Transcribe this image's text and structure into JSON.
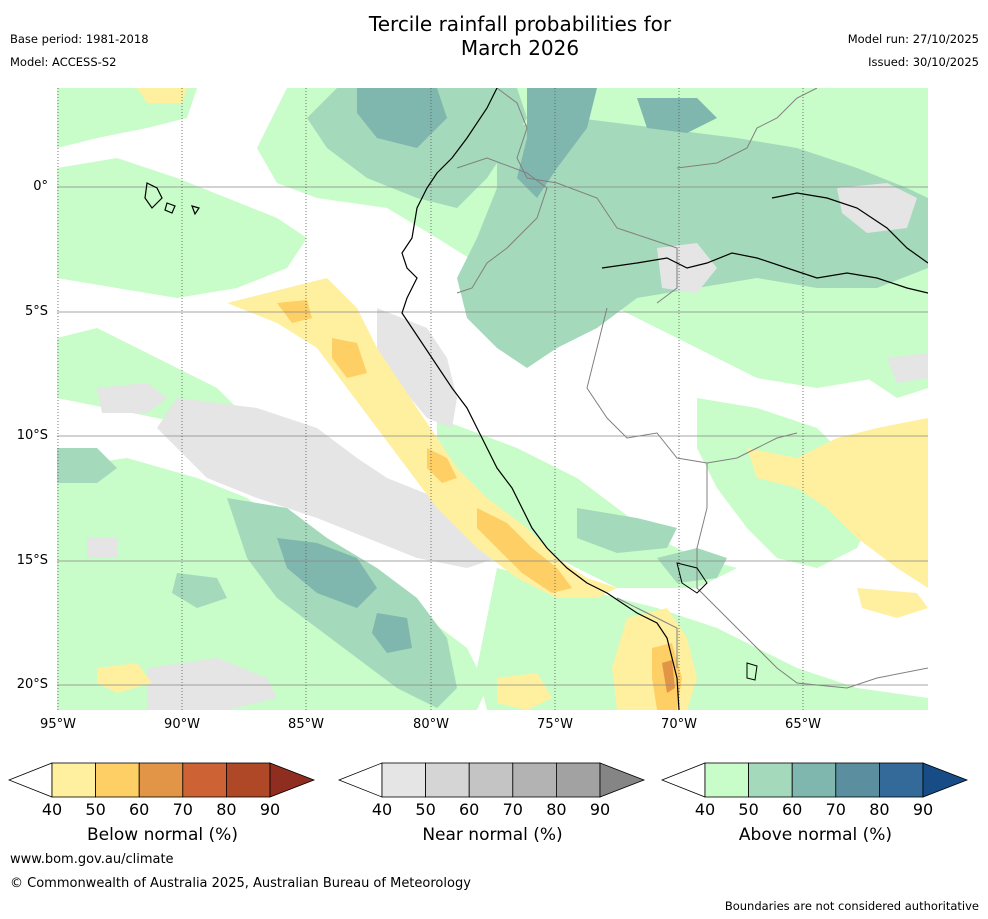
{
  "title": {
    "line1": "Tercile rainfall probabilities for",
    "line2": "March 2026"
  },
  "meta": {
    "base_period": "Base period: 1981-2018",
    "model": "Model: ACCESS-S2",
    "model_run": "Model run: 27/10/2025",
    "issued": "Issued: 30/10/2025"
  },
  "map": {
    "lat_labels": [
      "0°",
      "5°S",
      "10°S",
      "15°S",
      "20°S"
    ],
    "lon_labels": [
      "95°W",
      "90°W",
      "85°W",
      "80°W",
      "75°W",
      "70°W",
      "65°W"
    ],
    "lon_range": [
      -95,
      -60
    ],
    "lat_range": [
      -21,
      4
    ],
    "colors": {
      "ocean_bg": "#ffffff",
      "grid": "#888888",
      "coast": "#000000",
      "border": "#808080"
    }
  },
  "colorbars": [
    {
      "label": "Below normal (%)",
      "ticks": [
        "40",
        "50",
        "60",
        "70",
        "80",
        "90"
      ],
      "colors": [
        "#ffffff",
        "#fff0a0",
        "#fecf64",
        "#e29547",
        "#cd6334",
        "#ae4827",
        "#8f2d20"
      ]
    },
    {
      "label": "Near normal (%)",
      "ticks": [
        "40",
        "50",
        "60",
        "70",
        "80",
        "90"
      ],
      "colors": [
        "#ffffff",
        "#e5e5e5",
        "#d5d5d5",
        "#c4c4c4",
        "#b3b3b3",
        "#a2a2a2",
        "#858585"
      ]
    },
    {
      "label": "Above normal (%)",
      "ticks": [
        "40",
        "50",
        "60",
        "70",
        "80",
        "90"
      ],
      "colors": [
        "#ffffff",
        "#c8fcc8",
        "#a4d9bb",
        "#7fb6ad",
        "#5b8fa0",
        "#346a99",
        "#174c86"
      ]
    }
  ],
  "footer": {
    "url": "www.bom.gov.au/climate",
    "copyright": "© Commonwealth of Australia 2025, Australian Bureau of Meteorology",
    "disclaimer": "Boundaries are not considered authoritative"
  }
}
